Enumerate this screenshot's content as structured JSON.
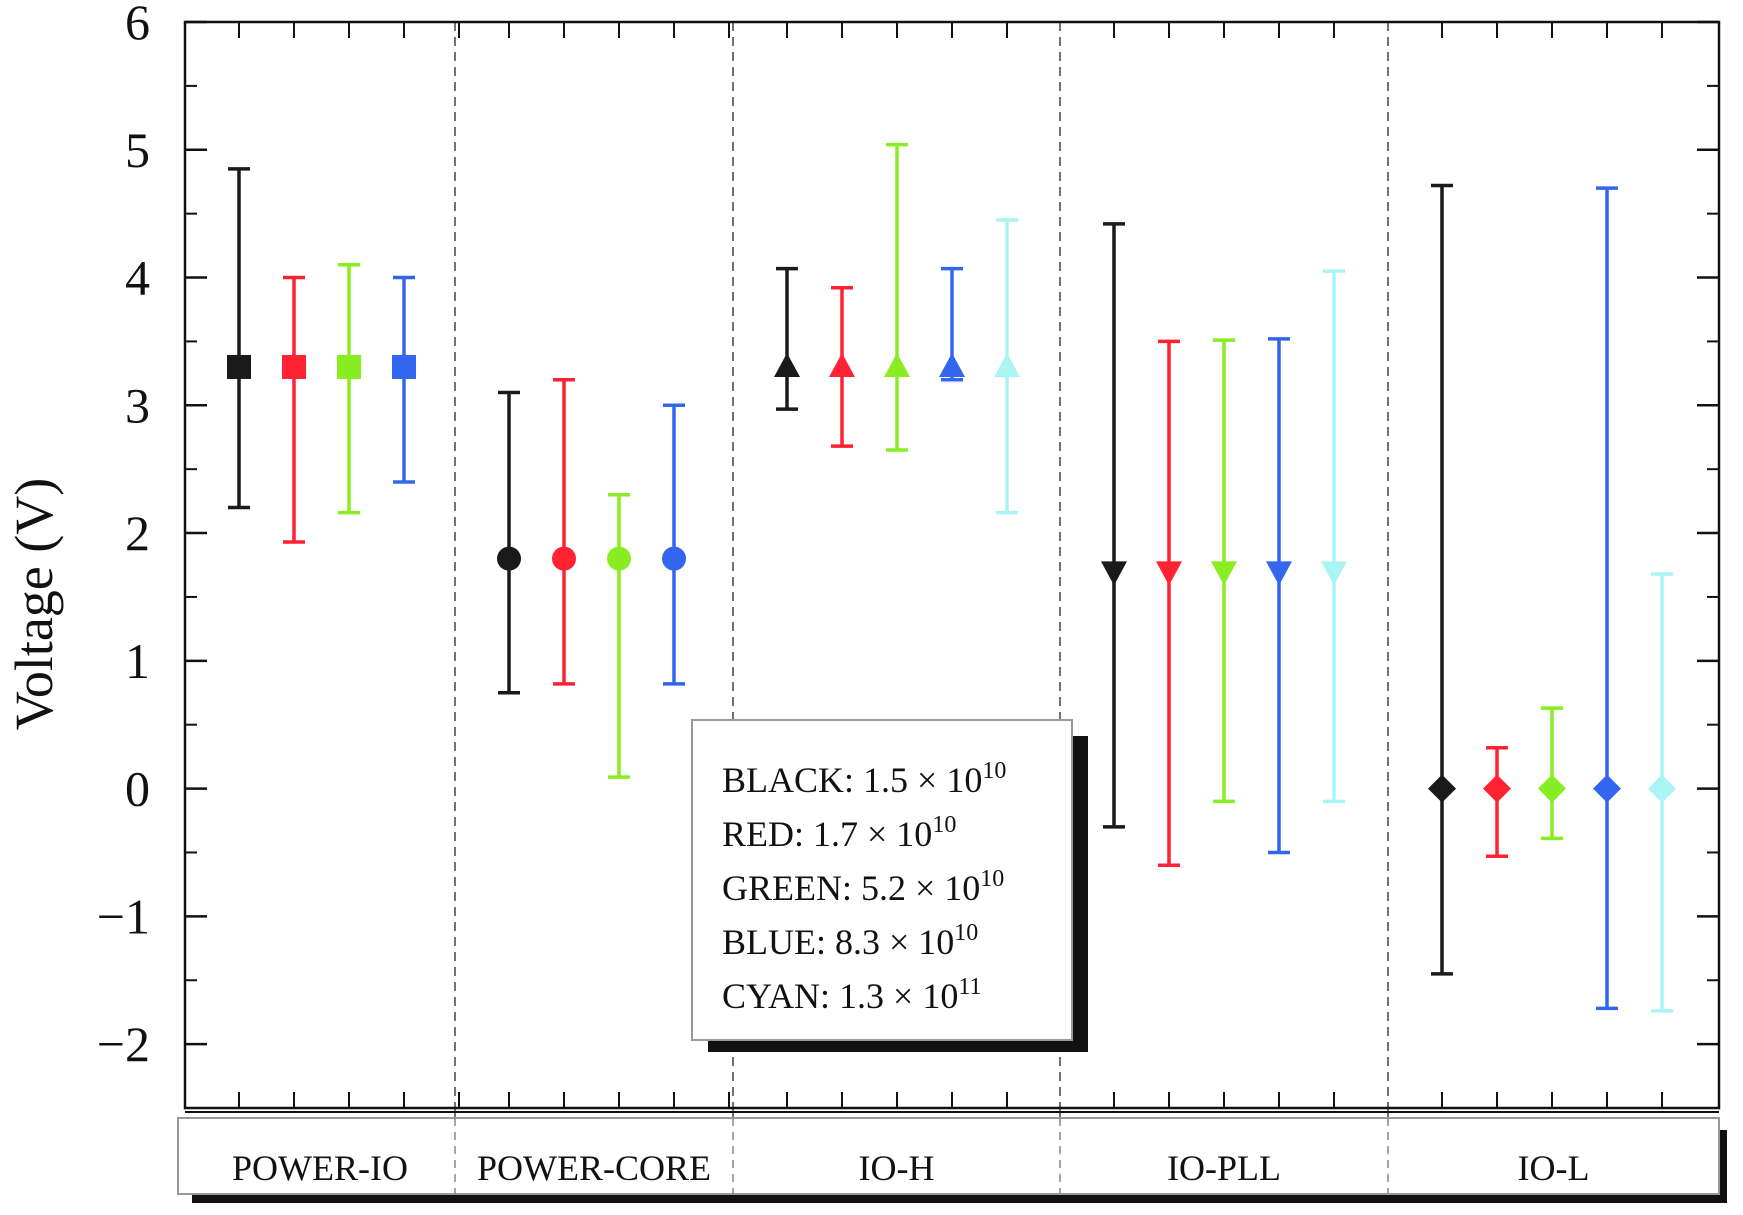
{
  "chart_data": {
    "type": "scatter",
    "title": "",
    "xlabel": "",
    "ylabel": "Voltage (V)",
    "ylim": [
      -2.5,
      6
    ],
    "yticks": [
      6,
      5,
      4,
      3,
      2,
      1,
      0,
      -1,
      -2
    ],
    "ytick_labels": [
      "6",
      "5",
      "4",
      "3",
      "2",
      "1",
      "0",
      "−1",
      "−2"
    ],
    "grid": false,
    "groups": [
      "POWER-IO",
      "POWER-CORE",
      "IO-H",
      "IO-PLL",
      "IO-L"
    ],
    "marker_by_group": [
      "square",
      "circle",
      "triangle-up",
      "triangle-down",
      "diamond"
    ],
    "colors": {
      "BLACK": "#1a1a1a",
      "RED": "#ff2233",
      "GREEN": "#88ee22",
      "BLUE": "#3366ee",
      "CYAN": "#aaf4f4"
    },
    "legend": {
      "placement": "center-bottom",
      "entries": [
        {
          "name": "BLACK",
          "label": "BLACK: 1.5 × 10",
          "exp": "10"
        },
        {
          "name": "RED",
          "label": "RED: 1.7 × 10",
          "exp": "10"
        },
        {
          "name": "GREEN",
          "label": "GREEN: 5.2 × 10",
          "exp": "10"
        },
        {
          "name": "BLUE",
          "label": "BLUE: 8.3 × 10",
          "exp": "10"
        },
        {
          "name": "CYAN",
          "label": "CYAN: 1.3 × 10",
          "exp": "11"
        }
      ]
    },
    "series": [
      {
        "name": "BLACK",
        "points": [
          {
            "group": "POWER-IO",
            "y": 3.3,
            "low": 2.2,
            "high": 4.85
          },
          {
            "group": "POWER-CORE",
            "y": 1.8,
            "low": 0.75,
            "high": 3.1
          },
          {
            "group": "IO-H",
            "y": 3.3,
            "low": 2.97,
            "high": 4.07
          },
          {
            "group": "IO-PLL",
            "y": 1.7,
            "low": -0.3,
            "high": 4.42
          },
          {
            "group": "IO-L",
            "y": 0.0,
            "low": -1.45,
            "high": 4.72
          }
        ]
      },
      {
        "name": "RED",
        "points": [
          {
            "group": "POWER-IO",
            "y": 3.3,
            "low": 1.93,
            "high": 4.0
          },
          {
            "group": "POWER-CORE",
            "y": 1.8,
            "low": 0.82,
            "high": 3.2
          },
          {
            "group": "IO-H",
            "y": 3.3,
            "low": 2.68,
            "high": 3.92
          },
          {
            "group": "IO-PLL",
            "y": 1.7,
            "low": -0.6,
            "high": 3.5
          },
          {
            "group": "IO-L",
            "y": 0.0,
            "low": -0.53,
            "high": 0.32
          }
        ]
      },
      {
        "name": "GREEN",
        "points": [
          {
            "group": "POWER-IO",
            "y": 3.3,
            "low": 2.16,
            "high": 4.1
          },
          {
            "group": "POWER-CORE",
            "y": 1.8,
            "low": 0.09,
            "high": 2.3
          },
          {
            "group": "IO-H",
            "y": 3.3,
            "low": 2.65,
            "high": 5.04
          },
          {
            "group": "IO-PLL",
            "y": 1.7,
            "low": -0.1,
            "high": 3.51
          },
          {
            "group": "IO-L",
            "y": 0.0,
            "low": -0.39,
            "high": 0.63
          }
        ]
      },
      {
        "name": "BLUE",
        "points": [
          {
            "group": "POWER-IO",
            "y": 3.3,
            "low": 2.4,
            "high": 4.0
          },
          {
            "group": "POWER-CORE",
            "y": 1.8,
            "low": 0.82,
            "high": 3.0
          },
          {
            "group": "IO-H",
            "y": 3.3,
            "low": 3.2,
            "high": 4.07
          },
          {
            "group": "IO-PLL",
            "y": 1.7,
            "low": -0.5,
            "high": 3.52
          },
          {
            "group": "IO-L",
            "y": 0.0,
            "low": -1.72,
            "high": 4.7
          }
        ]
      },
      {
        "name": "CYAN",
        "points": [
          {
            "group": "IO-H",
            "y": 3.3,
            "low": 2.16,
            "high": 4.45
          },
          {
            "group": "IO-PLL",
            "y": 1.7,
            "low": -0.1,
            "high": 4.05
          },
          {
            "group": "IO-L",
            "y": 0.0,
            "low": -1.74,
            "high": 1.68
          }
        ]
      }
    ]
  }
}
